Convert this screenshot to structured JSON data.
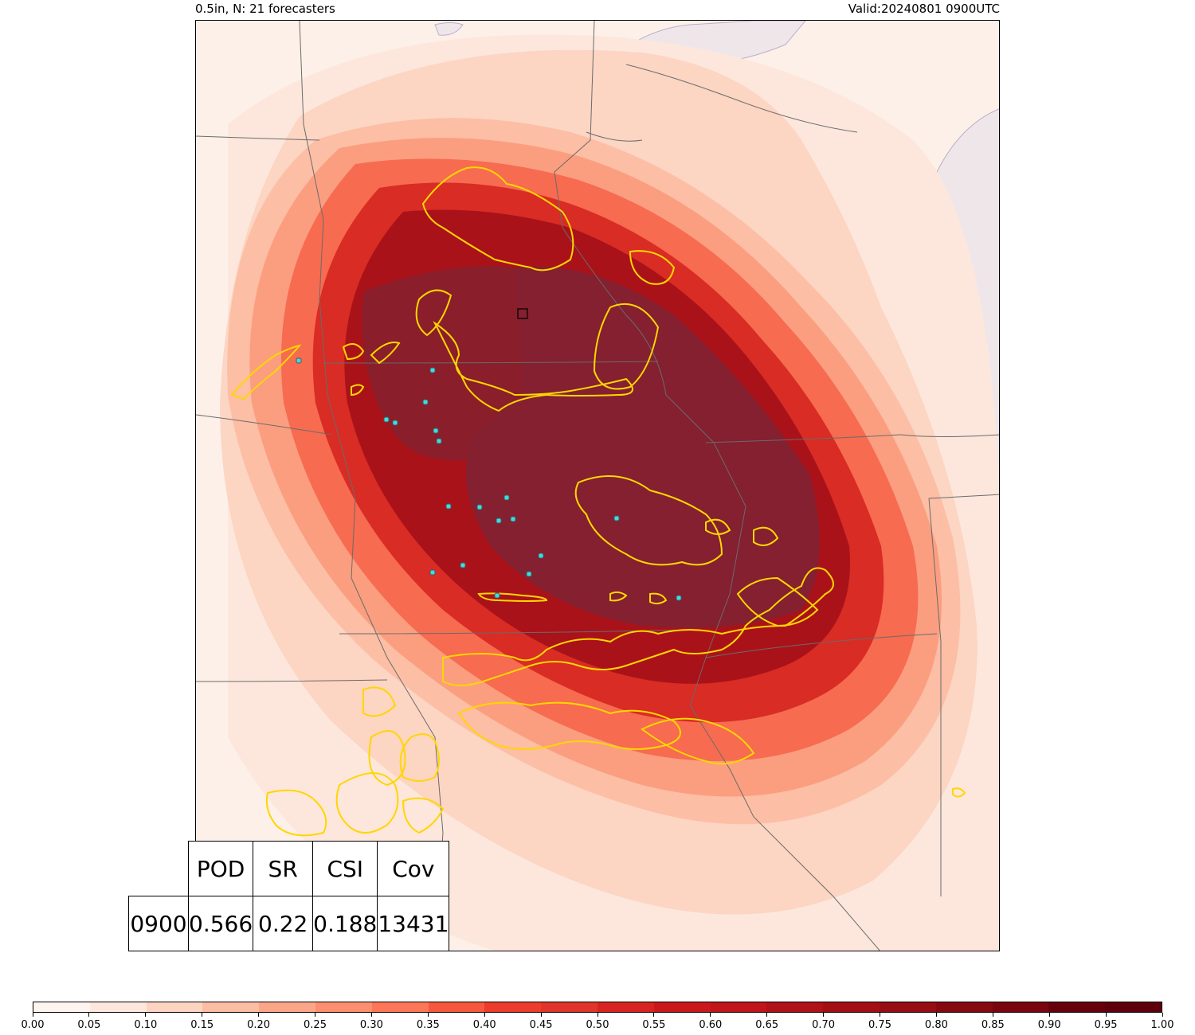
{
  "header": {
    "left_title": "0.5in, N: 21 forecasters",
    "right_title": "Valid:20240801 0900UTC"
  },
  "stats_table": {
    "headers": [
      "POD",
      "SR",
      "CSI",
      "Cov"
    ],
    "row": {
      "label": "0900",
      "values": [
        "0.566",
        "0.22",
        "0.188",
        "13431"
      ]
    }
  },
  "colorbar": {
    "min": 0.0,
    "max": 1.0,
    "colormap": "Reds",
    "colors": [
      "#fff5f0",
      "#fee8dd",
      "#fdd4c2",
      "#fcbda4",
      "#fca689",
      "#fc8f6f",
      "#fb7757",
      "#f6583e",
      "#eb3c2c",
      "#d72422",
      "#bf151b",
      "#a30f15",
      "#860811",
      "#67000d",
      "#540008",
      "#4b0008",
      "#fb7757",
      "#fb7757",
      "#fb7757",
      "#fb7757"
    ],
    "tick_labels": [
      "0.00",
      "0.05",
      "0.10",
      "0.15",
      "0.20",
      "0.25",
      "0.30",
      "0.35",
      "0.40",
      "0.45",
      "0.50",
      "0.55",
      "0.60",
      "0.65",
      "0.70",
      "0.75",
      "0.80",
      "0.85",
      "0.90",
      "0.95",
      "1.00"
    ]
  },
  "map": {
    "probability_contour_color": "#8a1e2a",
    "observed_outline_color": "#ffd600",
    "report_marker_color": "#34e0e8",
    "water_color": "#efe6ea",
    "land_color": "#fdf0e8",
    "border_color": "#6b6b6b"
  }
}
